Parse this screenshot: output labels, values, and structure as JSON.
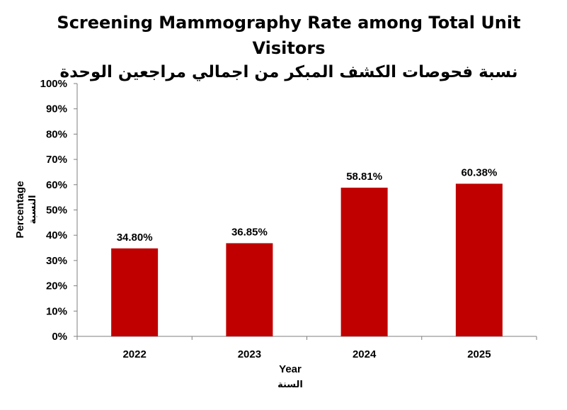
{
  "chart_data": {
    "type": "bar",
    "title": "Screening Mammography Rate among Total Unit",
    "title_line2": "Visitors",
    "subtitle": "نسبة فحوصات الكشف المبكر من اجمالي مراجعين الوحدة",
    "categories": [
      "2022",
      "2023",
      "2024",
      "2025"
    ],
    "values": [
      34.8,
      36.85,
      58.81,
      60.38
    ],
    "data_labels": [
      "34.80%",
      "36.85%",
      "58.81%",
      "60.38%"
    ],
    "xlabel": "Year",
    "xlabel_ar": "السنة",
    "ylabel": "Percentage",
    "ylabel_ar": "النسبة",
    "ylim": [
      0,
      100
    ],
    "yticks": [
      "0%",
      "10%",
      "20%",
      "30%",
      "40%",
      "50%",
      "60%",
      "70%",
      "80%",
      "90%",
      "100%"
    ],
    "grid": false,
    "legend": "none",
    "bar_color": "#c00000"
  }
}
